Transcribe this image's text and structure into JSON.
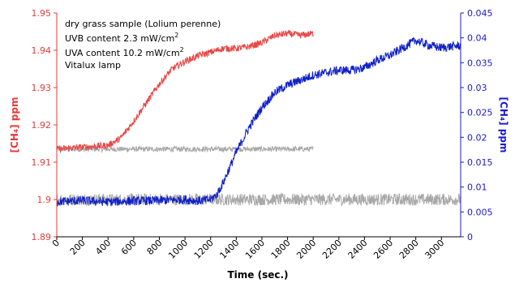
{
  "chart_data": {
    "type": "line",
    "title": "",
    "xlabel": "Time (sec.)",
    "ylabel_left": "[CH₄] ppm",
    "ylabel_right": "[CH₄] ppm",
    "xlim": [
      0,
      3150
    ],
    "x_ticks": [
      "0",
      "200",
      "400",
      "600",
      "800",
      "1000",
      "1200",
      "1400",
      "1600",
      "1800",
      "2000",
      "2200",
      "2400",
      "2600",
      "2800",
      "3000"
    ],
    "ylim_left": [
      1.89,
      1.95
    ],
    "y_left_ticks": [
      "1.89",
      "1.9",
      "1.91",
      "1.92",
      "1.93",
      "1.94",
      "1.95"
    ],
    "ylim_right": [
      0,
      0.045
    ],
    "y_right_ticks": [
      "0",
      "0.005",
      "0.01",
      "0.015",
      "0.02",
      "0.025",
      "0.03",
      "0.035",
      "0.04",
      "0.045"
    ],
    "grid": false,
    "annotations": [
      "dry grass sample (Lolium perenne)",
      "UVB content 2.3 mW/cm",
      "UVA content 10.2 mW/cm",
      "Vitalux lamp"
    ],
    "annotation_superscript": "2",
    "colors": {
      "left_axis": "#e83a3a",
      "right_axis": "#1a1ad0",
      "red_series": "#e84545",
      "blue_series": "#1020c8",
      "gray_series": "#a8a8a8"
    },
    "series": [
      {
        "axis": "left",
        "color": "red",
        "x": [
          0,
          200,
          400,
          500,
          600,
          700,
          800,
          900,
          1000,
          1100,
          1200,
          1300,
          1400,
          1500,
          1600,
          1700,
          1800,
          1900,
          2000
        ],
        "y": [
          1.9135,
          1.914,
          1.9145,
          1.9165,
          1.921,
          1.926,
          1.931,
          1.935,
          1.937,
          1.9385,
          1.9395,
          1.9405,
          1.9405,
          1.941,
          1.942,
          1.944,
          1.9445,
          1.944,
          1.9445
        ]
      },
      {
        "axis": "left",
        "color": "gray",
        "x": [
          0,
          2000
        ],
        "y": [
          1.9135,
          1.9135
        ]
      },
      {
        "axis": "right",
        "color": "blue",
        "x": [
          0,
          200,
          400,
          600,
          800,
          1000,
          1100,
          1200,
          1250,
          1300,
          1400,
          1500,
          1600,
          1700,
          1800,
          1900,
          2000,
          2100,
          2200,
          2300,
          2400,
          2500,
          2600,
          2700,
          2800,
          2900,
          3000,
          3150
        ],
        "y": [
          0.007,
          0.0073,
          0.007,
          0.0072,
          0.0073,
          0.0075,
          0.0072,
          0.0075,
          0.0085,
          0.011,
          0.017,
          0.022,
          0.026,
          0.029,
          0.0305,
          0.0315,
          0.0325,
          0.033,
          0.0335,
          0.0335,
          0.034,
          0.0355,
          0.0365,
          0.038,
          0.0395,
          0.0385,
          0.038,
          0.0385
        ]
      },
      {
        "axis": "right",
        "color": "gray",
        "x": [
          0,
          3150
        ],
        "y": [
          0.0075,
          0.0075
        ]
      }
    ]
  }
}
